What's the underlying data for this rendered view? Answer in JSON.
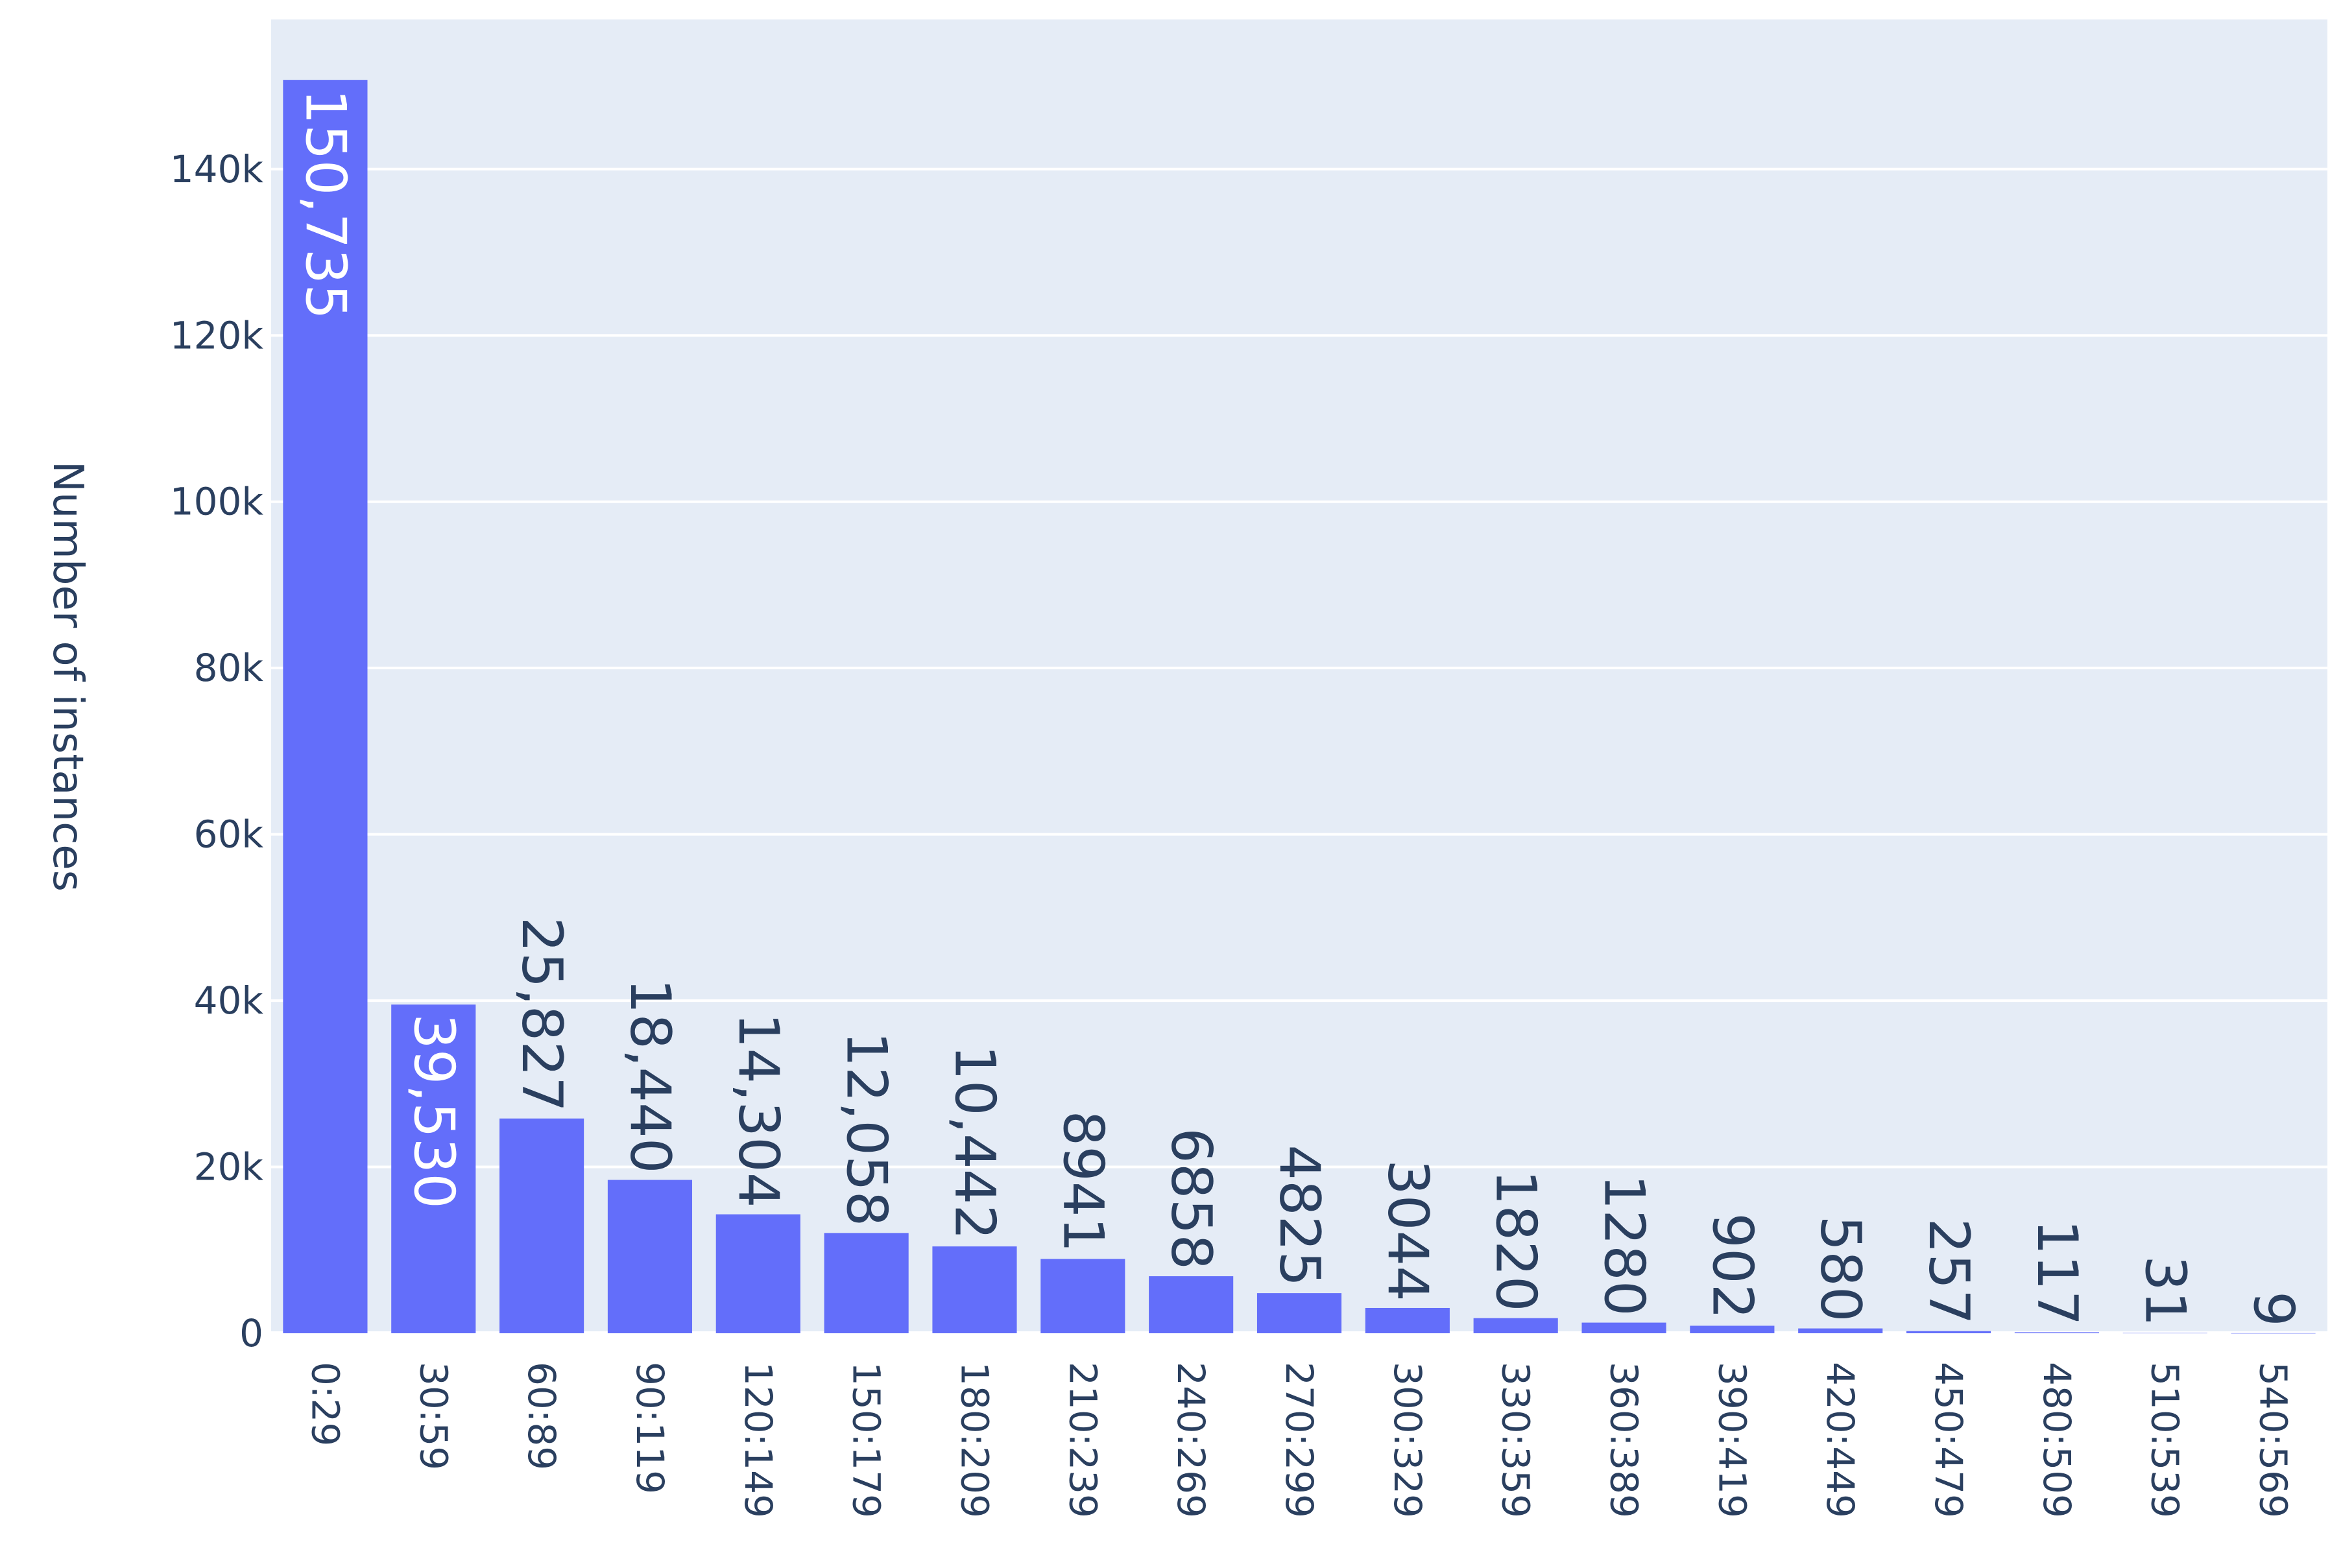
{
  "chart_data": {
    "type": "bar",
    "title": "",
    "xlabel": "",
    "ylabel": "Number of instances",
    "categories": [
      "0:29",
      "30:59",
      "60:89",
      "90:119",
      "120:149",
      "150:179",
      "180:209",
      "210:239",
      "240:269",
      "270:299",
      "300:329",
      "330:359",
      "360:389",
      "390:419",
      "420:449",
      "450:479",
      "480:509",
      "510:539",
      "540:569"
    ],
    "values": [
      150735,
      39530,
      25827,
      18440,
      14304,
      12058,
      10442,
      8941,
      6858,
      4825,
      3044,
      1820,
      1280,
      902,
      580,
      257,
      117,
      31,
      9
    ],
    "value_labels": [
      "150,735",
      "39,530",
      "25,827",
      "18,440",
      "14,304",
      "12,058",
      "10,442",
      "8941",
      "6858",
      "4825",
      "3044",
      "1820",
      "1280",
      "902",
      "580",
      "257",
      "117",
      "31",
      "9"
    ],
    "ylim": [
      0,
      158000
    ],
    "yticks": [
      0,
      20000,
      40000,
      60000,
      80000,
      100000,
      120000,
      140000
    ],
    "ytick_labels": [
      "0",
      "20k",
      "40k",
      "60k",
      "80k",
      "100k",
      "120k",
      "140k"
    ],
    "grid": true,
    "colors": {
      "bar": "#636efa",
      "plot_bg": "#e5ecf6",
      "grid": "#ffffff",
      "label_inside": "#ffffff",
      "label_outside": "#2a3f5f"
    }
  }
}
